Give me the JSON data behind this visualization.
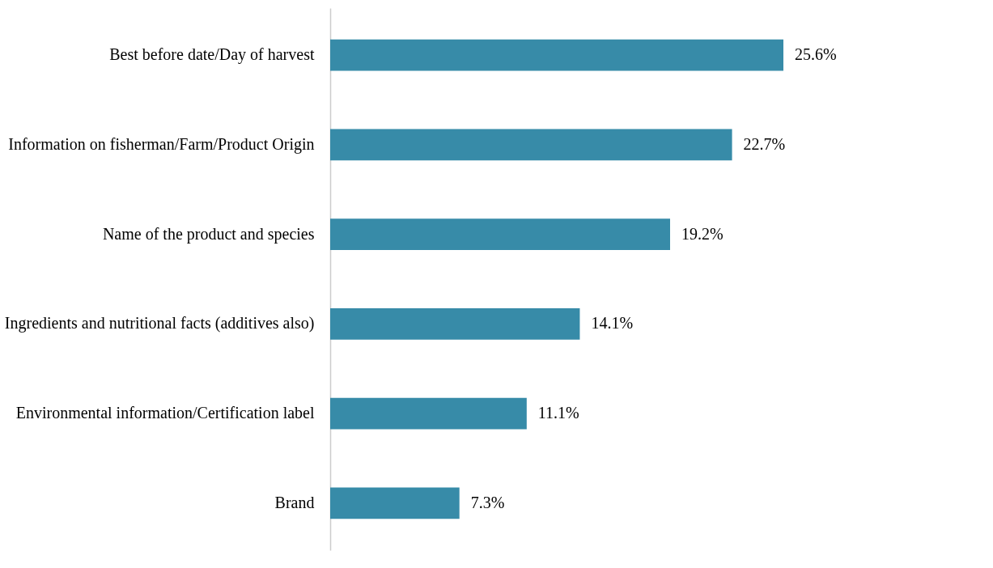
{
  "chart_data": {
    "type": "bar",
    "orientation": "horizontal",
    "categories": [
      "Best before date/Day of harvest",
      "Information on fisherman/Farm/Product Origin",
      "Name of the product and species",
      "Ingredients and nutritional facts (additives also)",
      "Environmental information/Certification label",
      "Brand"
    ],
    "values": [
      25.6,
      22.7,
      19.2,
      14.1,
      11.1,
      7.3
    ],
    "value_labels": [
      "25.6%",
      "22.7%",
      "19.2%",
      "14.1%",
      "11.1%",
      "7.3%"
    ],
    "color": "#378ba8",
    "tick_labels": "y",
    "grid": false
  }
}
